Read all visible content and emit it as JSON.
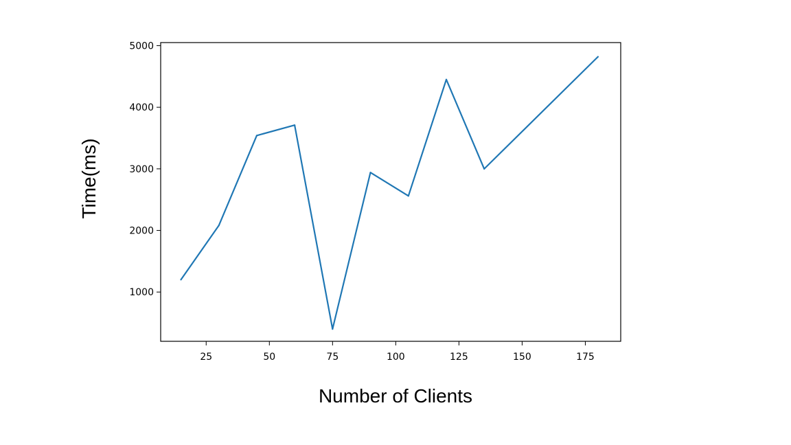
{
  "chart_data": {
    "type": "line",
    "title": "",
    "xlabel": "Number of Clients",
    "ylabel": "Time(ms)",
    "xlim": [
      7,
      189
    ],
    "ylim": [
      200,
      5050
    ],
    "xticks": [
      25,
      50,
      75,
      100,
      125,
      150,
      175
    ],
    "yticks": [
      1000,
      2000,
      3000,
      4000,
      5000
    ],
    "x_tick_labels": [
      "25",
      "50",
      "75",
      "100",
      "125",
      "150",
      "175"
    ],
    "y_tick_labels": [
      "1000",
      "2000",
      "3000",
      "4000",
      "5000"
    ],
    "grid": false,
    "legend": "none",
    "series": [
      {
        "color": "#1f77b4",
        "x": [
          15,
          30,
          45,
          60,
          75,
          90,
          105,
          120,
          135,
          180
        ],
        "y": [
          1200,
          2080,
          3540,
          3710,
          400,
          2940,
          2560,
          4450,
          3000,
          4820
        ]
      }
    ]
  }
}
